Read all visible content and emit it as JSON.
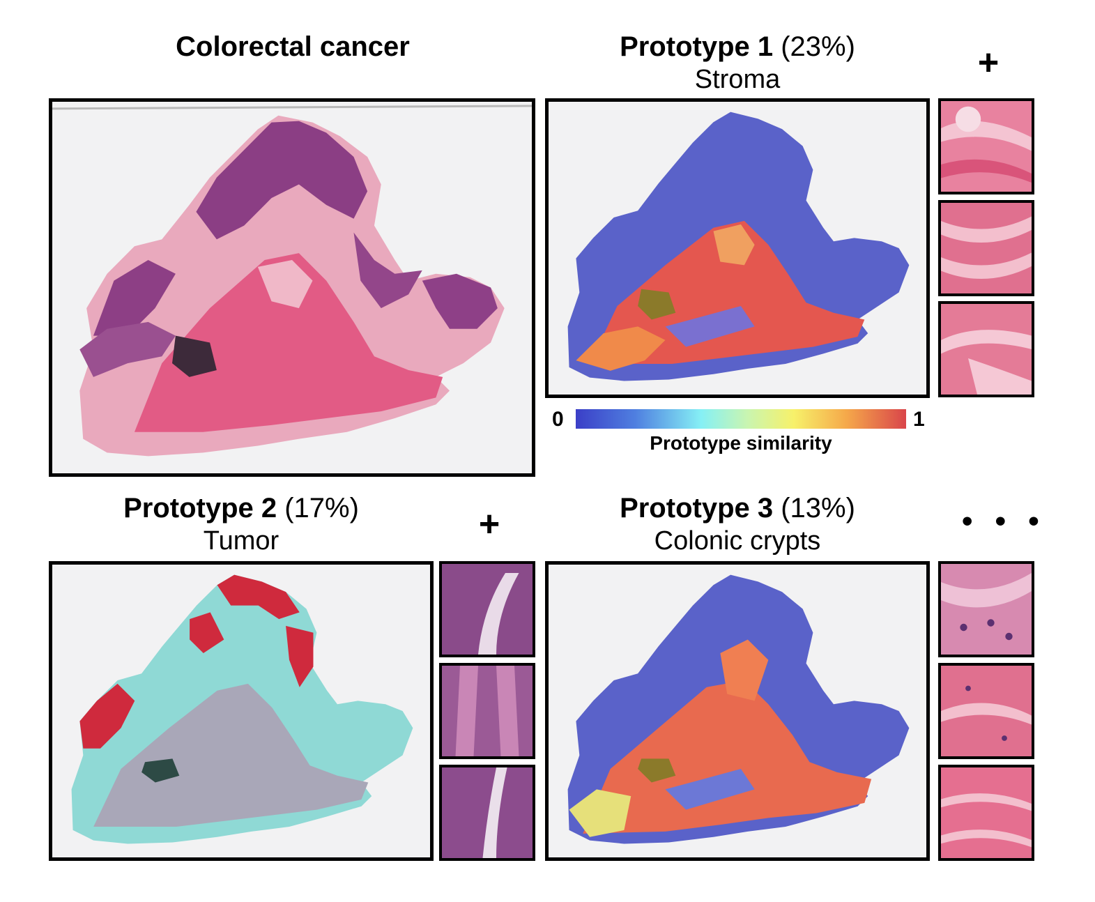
{
  "main": {
    "title": "Colorectal cancer"
  },
  "prototypes": [
    {
      "label": "Prototype 1",
      "percent": "(23%)",
      "tissue": "Stroma",
      "more": "+"
    },
    {
      "label": "Prototype 2",
      "percent": "(17%)",
      "tissue": "Tumor",
      "more": "+"
    },
    {
      "label": "Prototype 3",
      "percent": "(13%)",
      "tissue": "Colonic crypts",
      "more": "• • •"
    }
  ],
  "colorbar": {
    "min": "0",
    "max": "1",
    "label": "Prototype similarity"
  },
  "colors": {
    "he_purple": "#8a3d82",
    "he_pink": "#e0607f",
    "low_similarity": "#4a55c8",
    "high_similarity": "#e2534e",
    "tumor_red": "#d42a3c",
    "cyan": "#86e6e0"
  }
}
